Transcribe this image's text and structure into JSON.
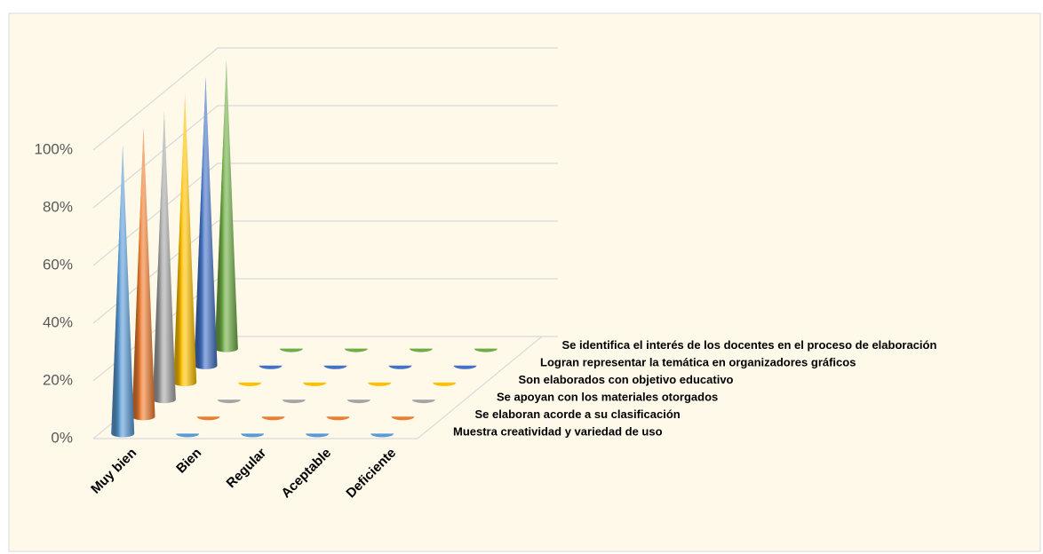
{
  "chart_data": {
    "type": "cone3d",
    "categories": [
      "Muy bien",
      "Bien",
      "Regular",
      "Aceptable",
      "Deficiente"
    ],
    "series": [
      {
        "name": "Muestra creatividad y variedad de uso",
        "color": "#5b9bd5",
        "values": [
          100,
          0,
          0,
          0,
          0
        ]
      },
      {
        "name": "Se elaboran acorde a su clasificación",
        "color": "#ed7d31",
        "values": [
          100,
          0,
          0,
          0,
          0
        ]
      },
      {
        "name": "Se apoyan con los materiales otorgados",
        "color": "#a5a5a5",
        "values": [
          100,
          0,
          0,
          0,
          0
        ]
      },
      {
        "name": "Son elaborados con objetivo educativo",
        "color": "#ffc000",
        "values": [
          100,
          0,
          0,
          0,
          0
        ]
      },
      {
        "name": "Logran representar la temática en organizadores gráficos",
        "color": "#4472c4",
        "values": [
          100,
          0,
          0,
          0,
          0
        ]
      },
      {
        "name": "Se identifica el interés de los docentes en el proceso de elaboración",
        "color": "#70ad47",
        "values": [
          100,
          0,
          0,
          0,
          0
        ]
      }
    ],
    "ylim": [
      0,
      100
    ],
    "yticks": [
      {
        "value": 0,
        "label": "0%"
      },
      {
        "value": 20,
        "label": "20%"
      },
      {
        "value": 40,
        "label": "40%"
      },
      {
        "value": 60,
        "label": "60%"
      },
      {
        "value": 80,
        "label": "80%"
      },
      {
        "value": 100,
        "label": "100%"
      }
    ],
    "grid": true
  }
}
